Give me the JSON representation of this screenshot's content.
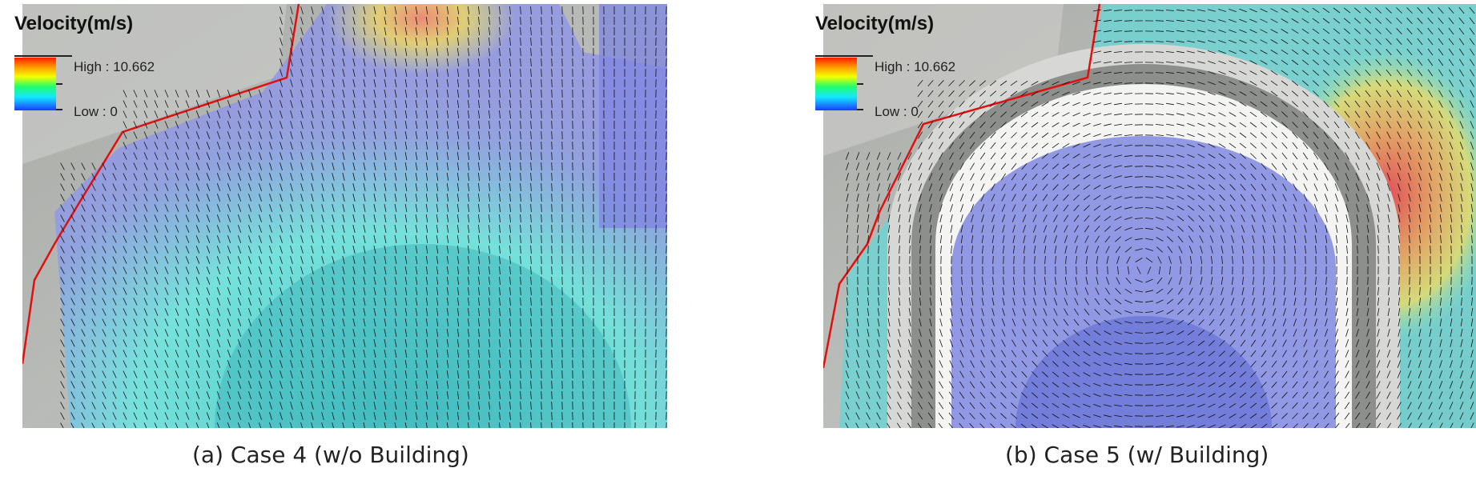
{
  "panels": [
    {
      "id": "a",
      "legend": {
        "title": "Velocity(m/s)",
        "high_label": "High : 10.662",
        "low_label": "Low : 0"
      },
      "caption": "(a) Case 4 (w/o Building)",
      "scenario": "without-building"
    },
    {
      "id": "b",
      "legend": {
        "title": "Velocity(m/s)",
        "high_label": "High : 10.662",
        "low_label": "Low : 0"
      },
      "caption": "(b) Case 5 (w/ Building)",
      "scenario": "with-building"
    }
  ],
  "colors": {
    "ramp_high": "#ff1e00",
    "ramp_mid": "#f5ff00",
    "ramp_low": "#1a3cff",
    "boundary_line": "#e01010",
    "arrow": "#111111"
  }
}
